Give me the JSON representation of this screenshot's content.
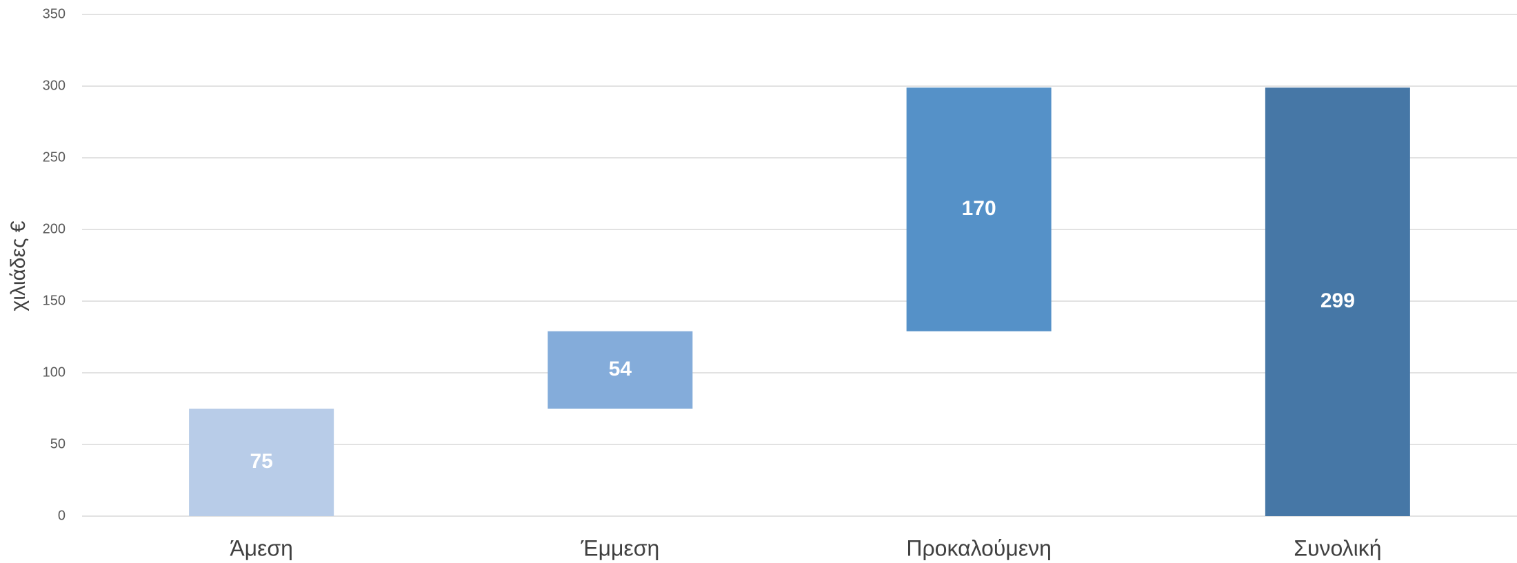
{
  "chart_data": {
    "type": "waterfall",
    "y_label": "χιλιάδες €",
    "categories": [
      "Άμεση",
      "Έμμεση",
      "Προκαλούμενη",
      "Συνολική"
    ],
    "values": [
      75,
      54,
      170,
      299
    ],
    "is_total": [
      false,
      false,
      false,
      true
    ],
    "colors": [
      "#b8cce8",
      "#84acda",
      "#5591c8",
      "#4677a6"
    ],
    "ylim": [
      0,
      350
    ],
    "yticks": [
      0,
      50,
      100,
      150,
      200,
      250,
      300,
      350
    ],
    "grid": true
  }
}
